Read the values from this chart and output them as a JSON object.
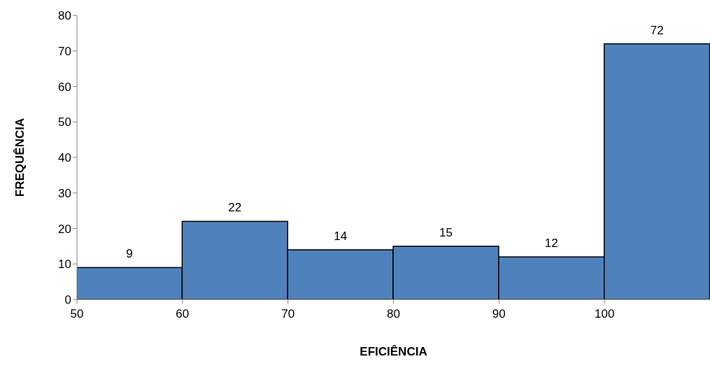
{
  "chart_data": {
    "type": "histogram",
    "xlabel": "EFICIÊNCIA",
    "ylabel": "FREQUÊNCIA",
    "bins": [
      50,
      60,
      70,
      80,
      90,
      100,
      110
    ],
    "values": [
      9,
      22,
      14,
      15,
      12,
      72
    ],
    "color": "#4f81bd",
    "xlim": [
      50,
      110
    ],
    "xticks": [
      50,
      60,
      70,
      80,
      90,
      100
    ],
    "ylim": [
      0,
      80
    ],
    "yticks": [
      0,
      10,
      20,
      30,
      40,
      50,
      60,
      70,
      80
    ],
    "data_labels": true
  }
}
